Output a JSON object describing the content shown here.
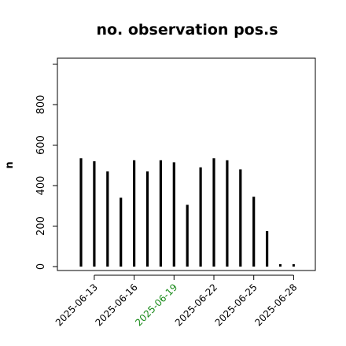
{
  "chart_data": {
    "type": "bar",
    "title": "no. observation pos.s",
    "xlabel": "",
    "ylabel": "n",
    "ylim": [
      0,
      1000
    ],
    "yticks": [
      0,
      200,
      400,
      600,
      800
    ],
    "grid": false,
    "categories": [
      "2025-06-12",
      "2025-06-13",
      "2025-06-14",
      "2025-06-15",
      "2025-06-16",
      "2025-06-17",
      "2025-06-18",
      "2025-06-19",
      "2025-06-20",
      "2025-06-21",
      "2025-06-22",
      "2025-06-23",
      "2025-06-24",
      "2025-06-25",
      "2025-06-26",
      "2025-06-27",
      "2025-06-28"
    ],
    "values": [
      535,
      520,
      470,
      340,
      525,
      470,
      525,
      515,
      305,
      490,
      535,
      525,
      480,
      345,
      175,
      5,
      5
    ],
    "xtick_labels": [
      {
        "date": "2025-06-13",
        "text": "2025-06-13",
        "color": "#000000"
      },
      {
        "date": "2025-06-16",
        "text": "2025-06-16",
        "color": "#000000"
      },
      {
        "date": "2025-06-19",
        "text": "2025-06-19",
        "color": "#1a8a1a"
      },
      {
        "date": "2025-06-22",
        "text": "2025-06-22",
        "color": "#000000"
      },
      {
        "date": "2025-06-25",
        "text": "2025-06-25",
        "color": "#000000"
      },
      {
        "date": "2025-06-28",
        "text": "2025-06-28",
        "color": "#000000"
      }
    ],
    "bar_color": "#000000"
  }
}
